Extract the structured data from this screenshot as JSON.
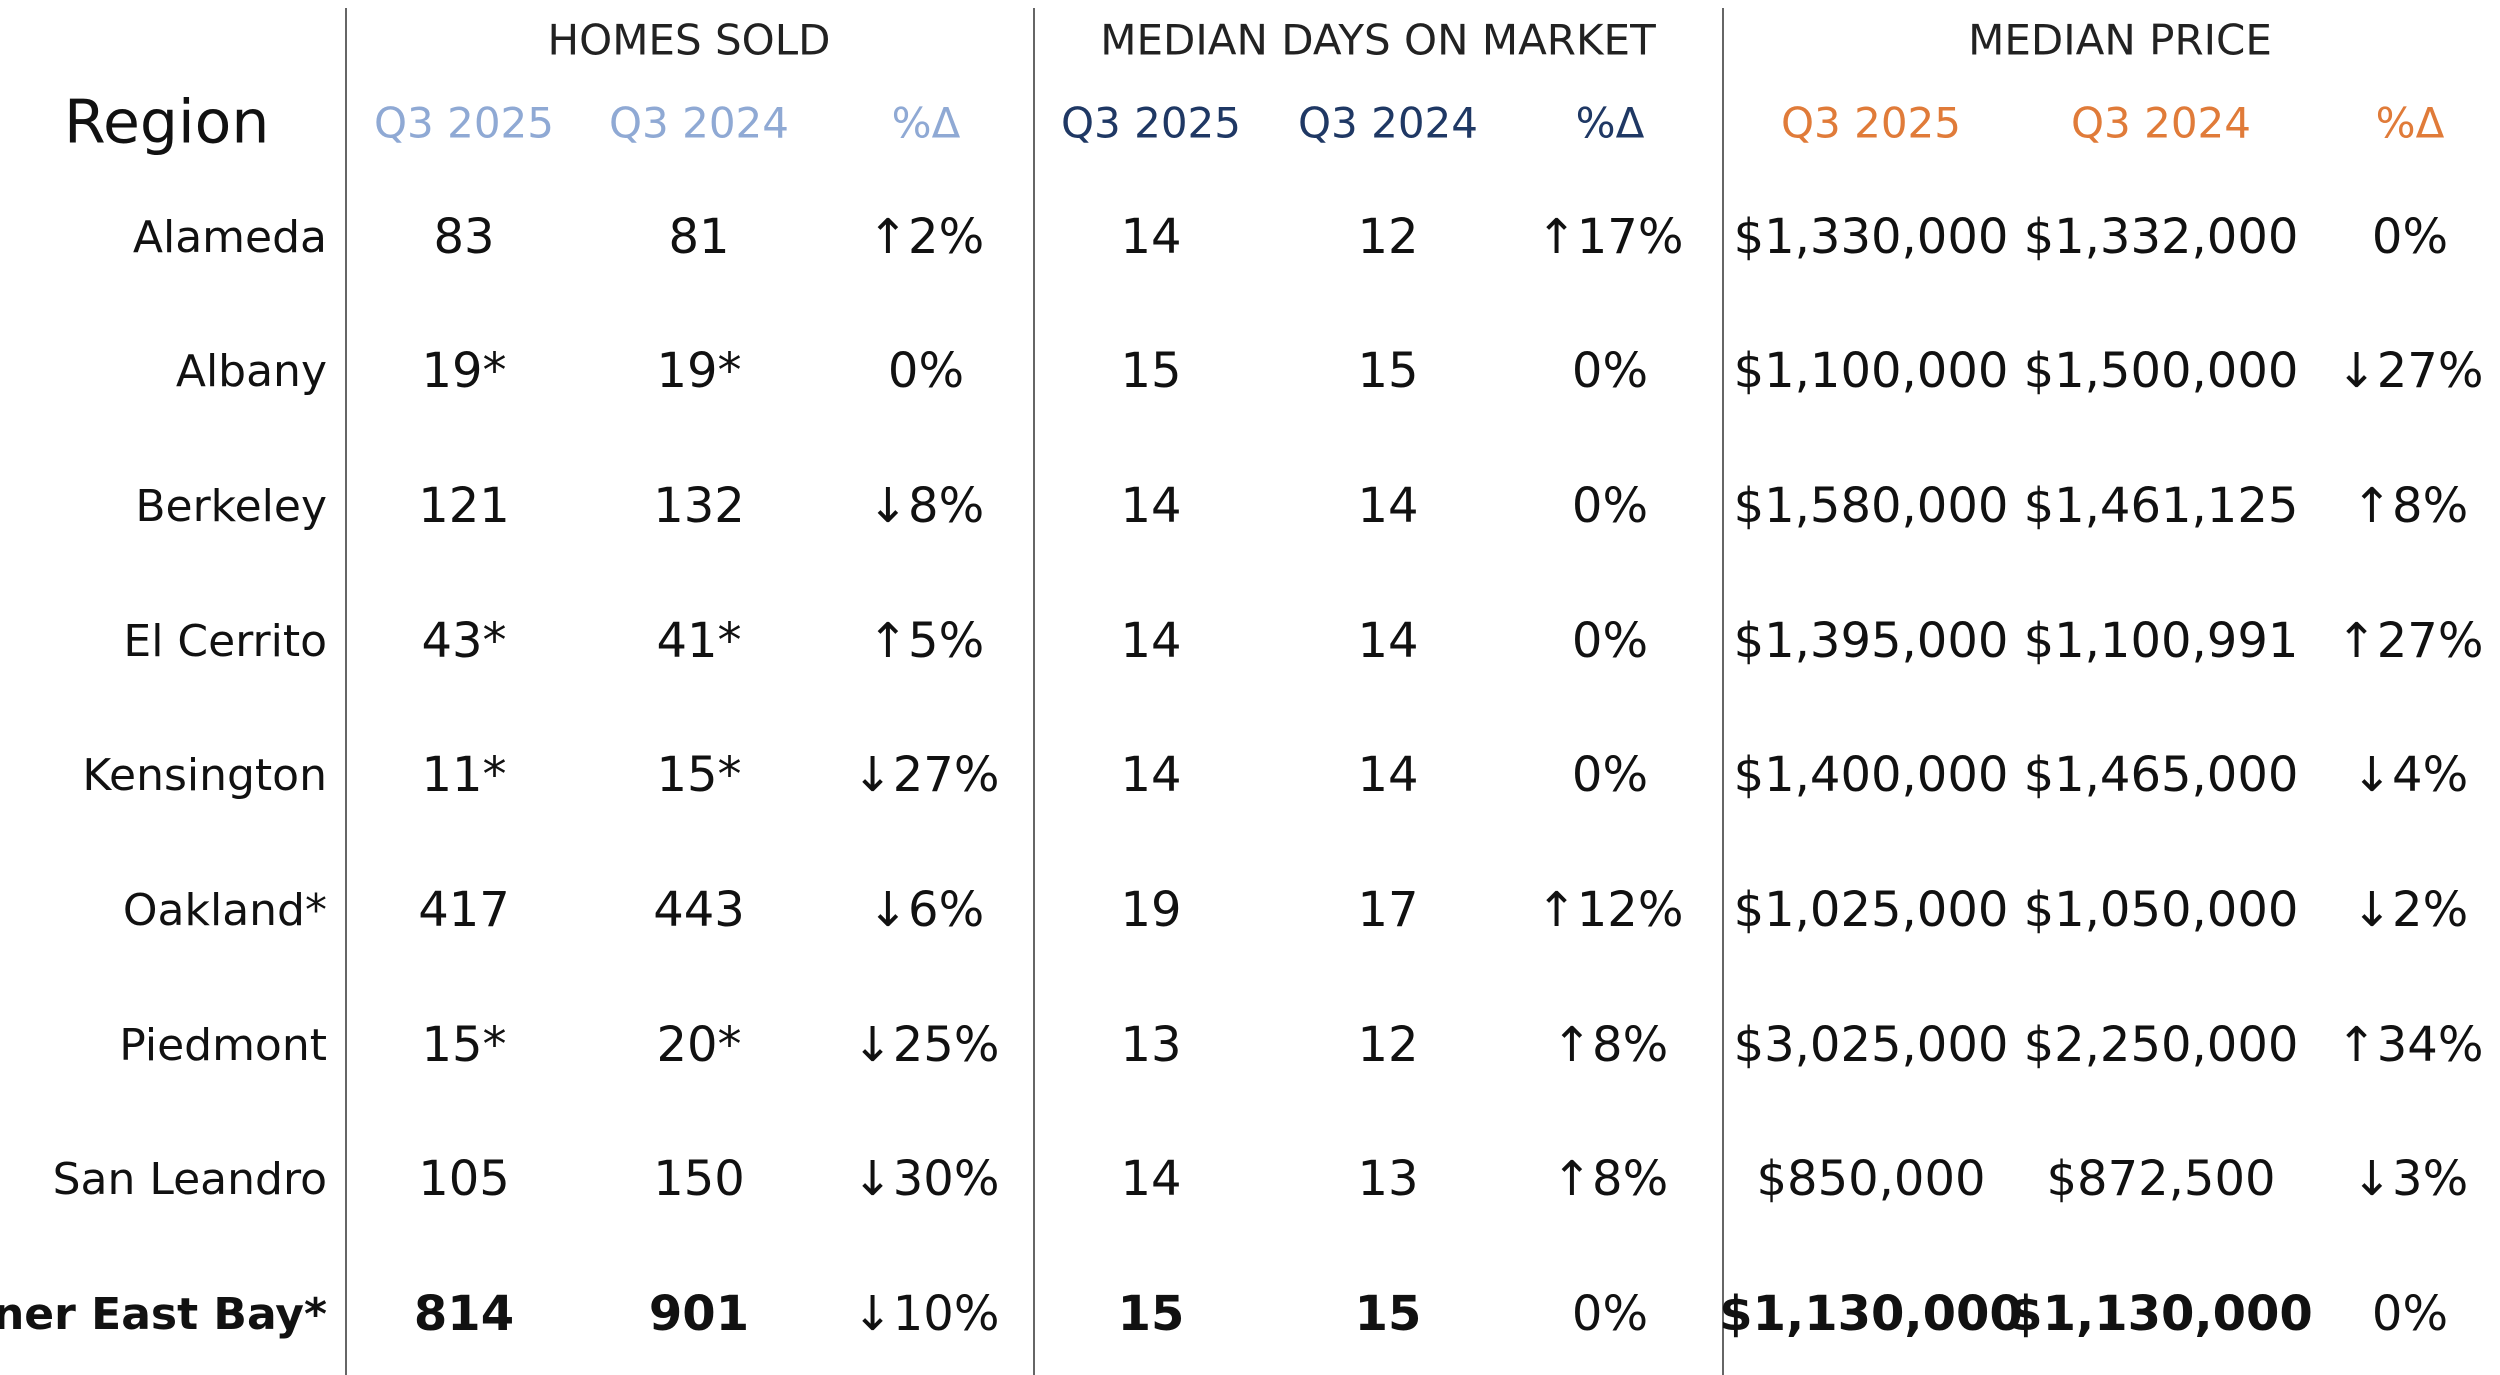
{
  "region_label": "Region",
  "groups": [
    {
      "title": "HOMES SOLD",
      "columns": [
        "Q3 2025",
        "Q3 2024",
        "%Δ"
      ]
    },
    {
      "title": "MEDIAN DAYS ON MARKET",
      "columns": [
        "Q3 2025",
        "Q3 2024",
        "%Δ"
      ]
    },
    {
      "title": "MEDIAN PRICE",
      "columns": [
        "Q3 2025",
        "Q3 2024",
        "%Δ"
      ]
    }
  ],
  "rows": [
    {
      "region": "Alameda",
      "cells": [
        "83",
        "81",
        "↑2%",
        "14",
        "12",
        "↑17%",
        "$1,330,000",
        "$1,332,000",
        "0%"
      ]
    },
    {
      "region": "Albany",
      "cells": [
        "19*",
        "19*",
        "0%",
        "15",
        "15",
        "0%",
        "$1,100,000",
        "$1,500,000",
        "↓27%"
      ]
    },
    {
      "region": "Berkeley",
      "cells": [
        "121",
        "132",
        "↓8%",
        "14",
        "14",
        "0%",
        "$1,580,000",
        "$1,461,125",
        "↑8%"
      ]
    },
    {
      "region": "El Cerrito",
      "cells": [
        "43*",
        "41*",
        "↑5%",
        "14",
        "14",
        "0%",
        "$1,395,000",
        "$1,100,991",
        "↑27%"
      ]
    },
    {
      "region": "Kensington",
      "cells": [
        "11*",
        "15*",
        "↓27%",
        "14",
        "14",
        "0%",
        "$1,400,000",
        "$1,465,000",
        "↓4%"
      ]
    },
    {
      "region": "Oakland*",
      "cells": [
        "417",
        "443",
        "↓6%",
        "19",
        "17",
        "↑12%",
        "$1,025,000",
        "$1,050,000",
        "↓2%"
      ]
    },
    {
      "region": "Piedmont",
      "cells": [
        "15*",
        "20*",
        "↓25%",
        "13",
        "12",
        "↑8%",
        "$3,025,000",
        "$2,250,000",
        "↑34%"
      ]
    },
    {
      "region": "San Leandro",
      "cells": [
        "105",
        "150",
        "↓30%",
        "14",
        "13",
        "↑8%",
        "$850,000",
        "$872,500",
        "↓3%"
      ]
    },
    {
      "region": "Inner East Bay*",
      "cells": [
        "814",
        "901",
        "↓10%",
        "15",
        "15",
        "0%",
        "$1,130,000",
        "$1,130,000",
        "0%"
      ]
    }
  ]
}
